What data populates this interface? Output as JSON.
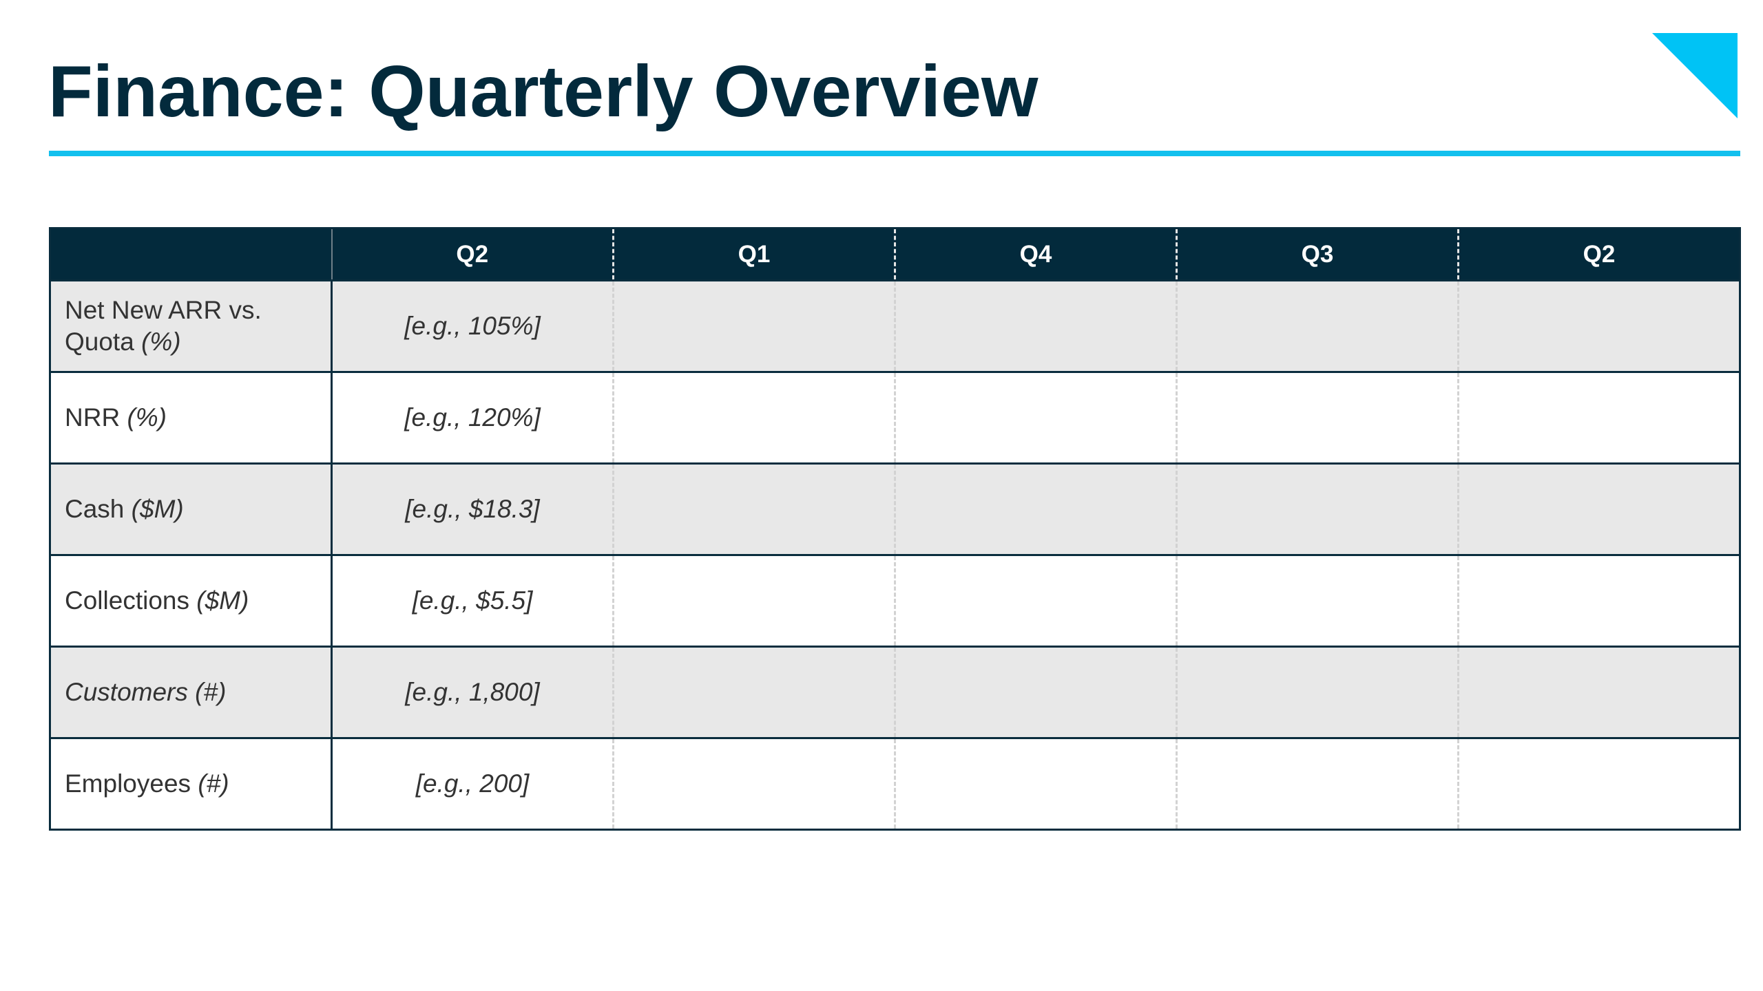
{
  "slide": {
    "title": "Finance: Quarterly Overview"
  },
  "colors": {
    "title": "#032a3c",
    "accent": "#13c0ee",
    "header_background": "#032a3c",
    "shaded_row": "#e8e8e8"
  },
  "table": {
    "corner_header": "",
    "columns": [
      "Q2",
      "Q1",
      "Q4",
      "Q3",
      "Q2"
    ],
    "rows": [
      {
        "metric": "Net New ARR vs. Quota",
        "unit": "(%)",
        "example": "[e.g., 105%]"
      },
      {
        "metric": "NRR",
        "unit": "(%)",
        "example": "[e.g., 120%]"
      },
      {
        "metric": "Cash",
        "unit": "($M)",
        "example": "[e.g., $18.3]"
      },
      {
        "metric": "Collections",
        "unit": "($M)",
        "example": "[e.g., $5.5]"
      },
      {
        "metric": "Customers",
        "unit": "(#)",
        "example": "[e.g., 1,800]"
      },
      {
        "metric": "Employees",
        "unit": "(#)",
        "example": "[e.g., 200]"
      }
    ]
  }
}
